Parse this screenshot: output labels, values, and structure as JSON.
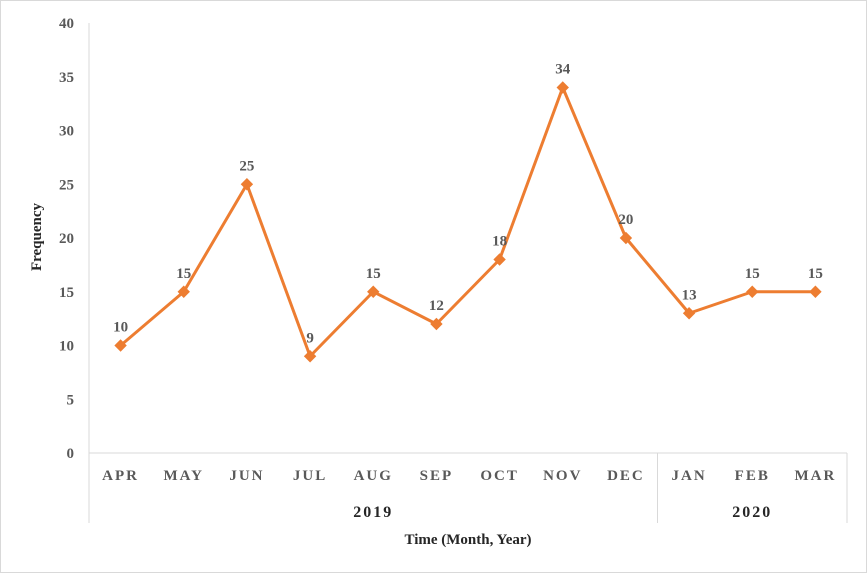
{
  "chart_data": {
    "type": "line",
    "categories": [
      "APR",
      "MAY",
      "JUN",
      "JUL",
      "AUG",
      "SEP",
      "OCT",
      "NOV",
      "DEC",
      "JAN",
      "FEB",
      "MAR"
    ],
    "groups": [
      {
        "label": "2019",
        "count": 9
      },
      {
        "label": "2020",
        "count": 3
      }
    ],
    "series": [
      {
        "values": [
          10,
          15,
          25,
          9,
          15,
          12,
          18,
          34,
          20,
          13,
          15,
          15
        ],
        "color": "#ED7D31",
        "marker": "diamond"
      }
    ],
    "data_labels": true,
    "xlabel": "Time (Month, Year)",
    "ylabel": "Frequency",
    "ylim": [
      0,
      40
    ],
    "yticks": [
      0,
      5,
      10,
      15,
      20,
      25,
      30,
      35,
      40
    ],
    "grid": false,
    "legend": "none"
  }
}
